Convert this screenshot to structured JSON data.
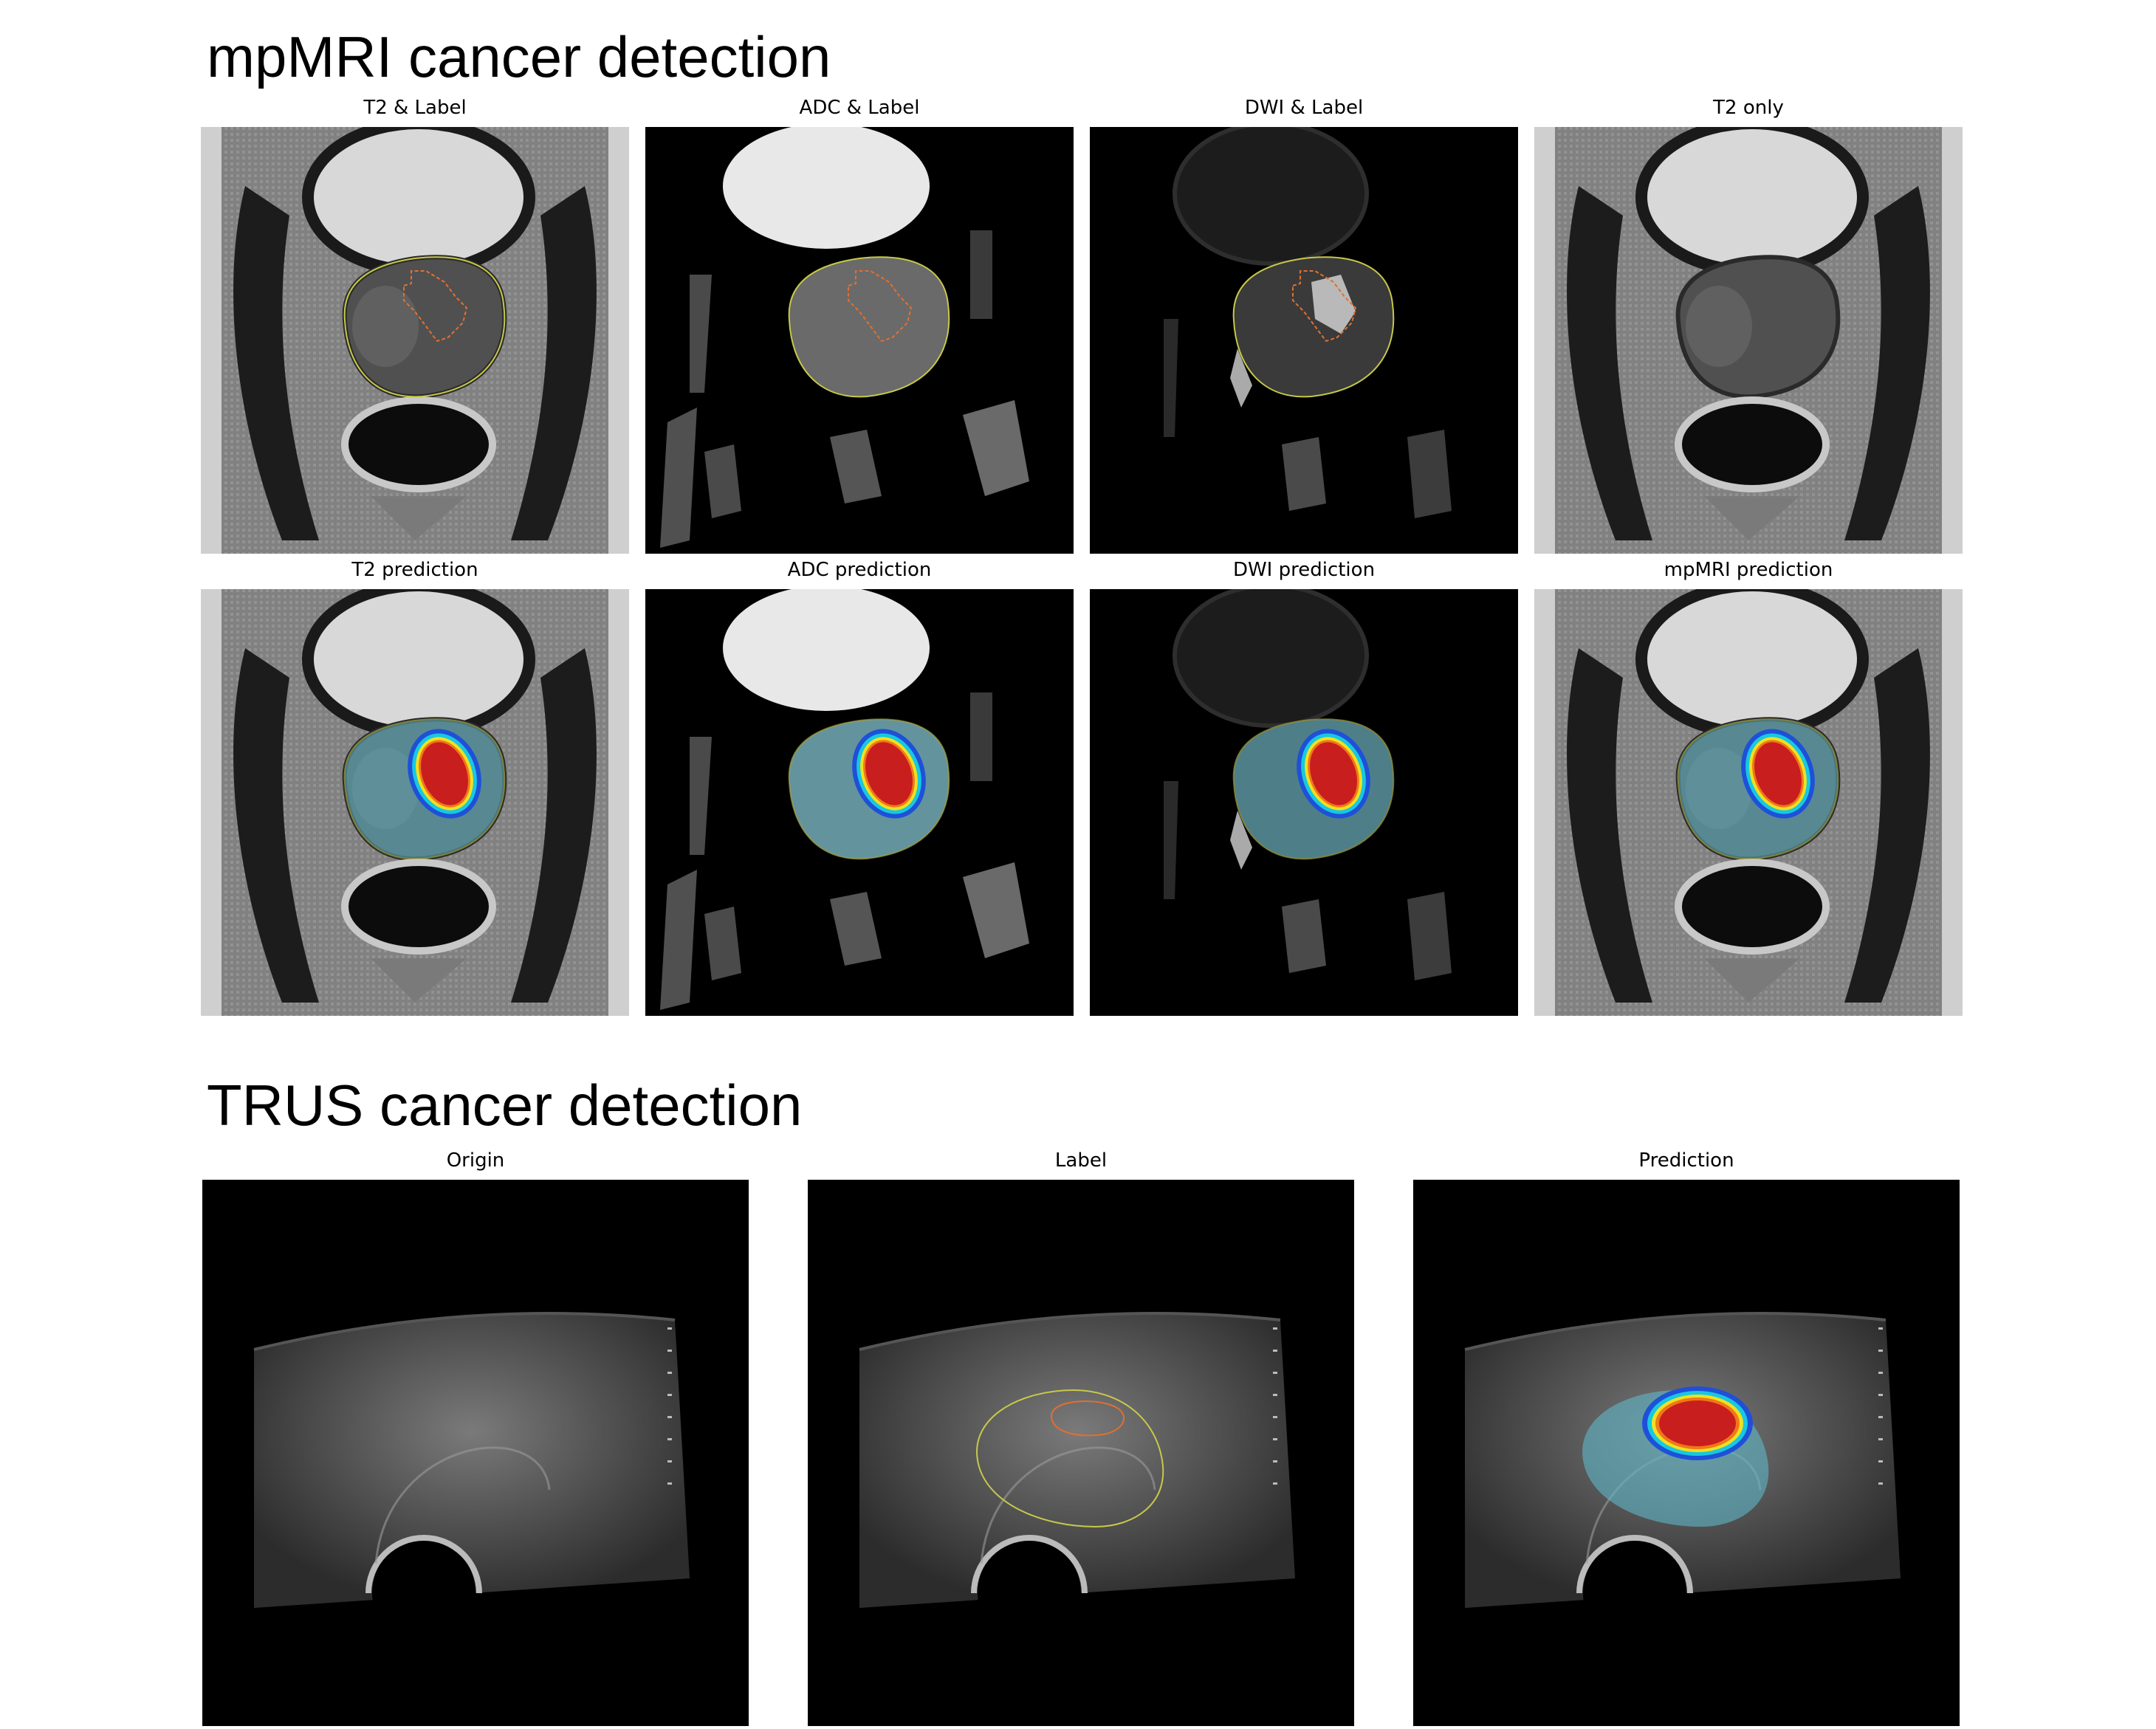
{
  "mpmri": {
    "title": "mpMRI cancer detection",
    "panels": [
      {
        "title": "T2 & Label",
        "modality": "t2",
        "overlay": "label"
      },
      {
        "title": "ADC & Label",
        "modality": "adc",
        "overlay": "label"
      },
      {
        "title": "DWI & Label",
        "modality": "dwi",
        "overlay": "label"
      },
      {
        "title": "T2 only",
        "modality": "t2",
        "overlay": "none"
      },
      {
        "title": "T2 prediction",
        "modality": "t2",
        "overlay": "prediction"
      },
      {
        "title": "ADC prediction",
        "modality": "adc",
        "overlay": "prediction"
      },
      {
        "title": "DWI prediction",
        "modality": "dwi",
        "overlay": "prediction"
      },
      {
        "title": "mpMRI prediction",
        "modality": "t2",
        "overlay": "prediction"
      }
    ]
  },
  "trus": {
    "title": "TRUS cancer detection",
    "panels": [
      {
        "title": "Origin",
        "overlay": "none"
      },
      {
        "title": "Label",
        "overlay": "label"
      },
      {
        "title": "Prediction",
        "overlay": "prediction"
      }
    ]
  },
  "colors": {
    "prostate_label": "#c8c84a",
    "lesion_label": "#e07030",
    "prediction_gland": "#5fb8c8",
    "prediction_lesion": "#c81e1e"
  }
}
